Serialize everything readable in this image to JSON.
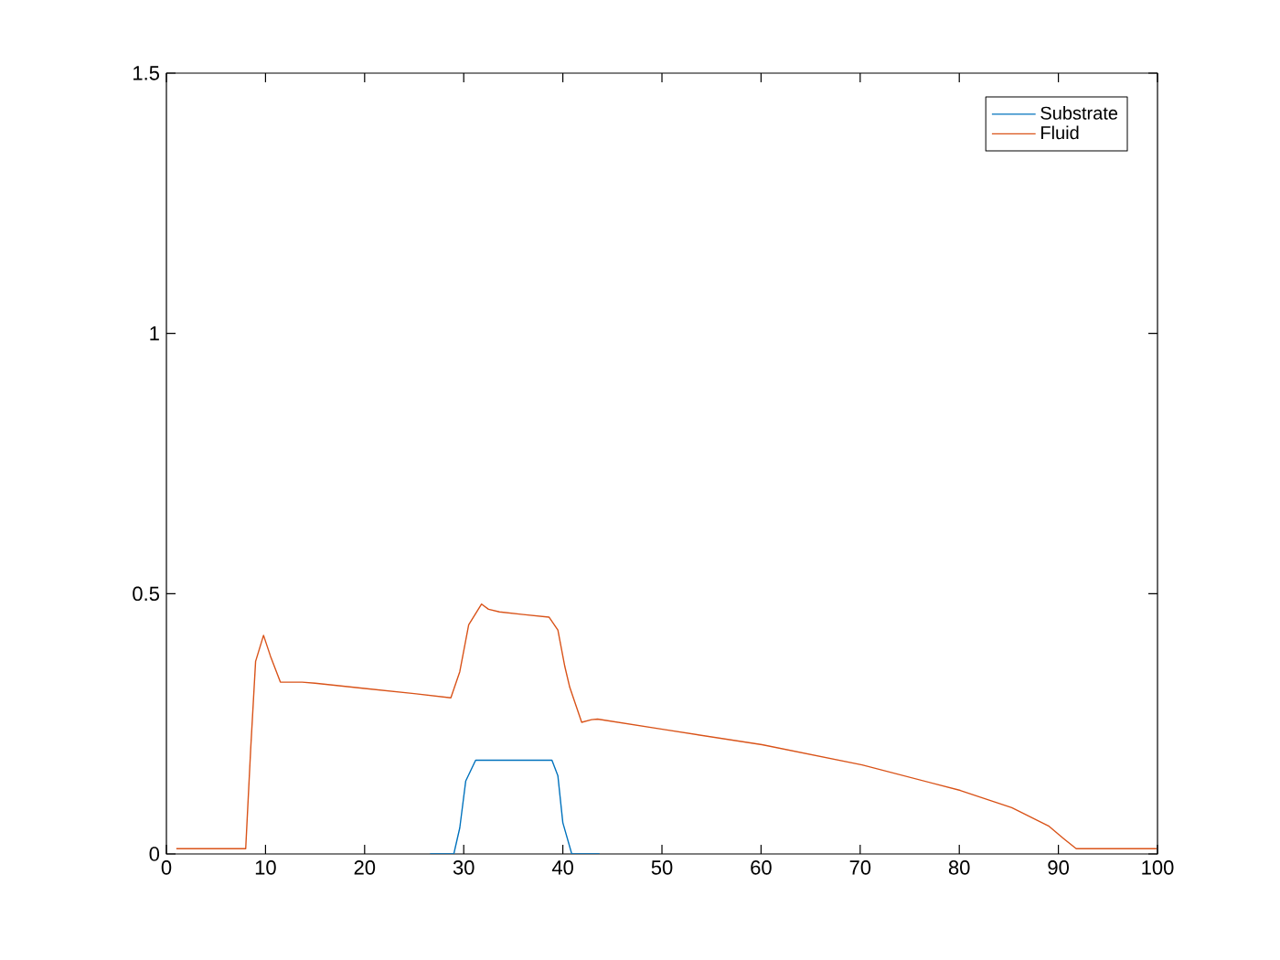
{
  "chart_data": {
    "type": "line",
    "xlim": [
      0,
      100
    ],
    "ylim": [
      0,
      1.5
    ],
    "xticks": [
      0,
      10,
      20,
      30,
      40,
      50,
      60,
      70,
      80,
      90,
      100
    ],
    "yticks": [
      0,
      0.5,
      1,
      1.5
    ],
    "legend": "top right",
    "grid": false,
    "series": [
      {
        "name": "Substrate",
        "color": "#0072bd",
        "x": [
          26.6,
          29.0,
          29.6,
          30.2,
          31.2,
          35,
          38.9,
          39.5,
          40.0,
          40.9,
          43.7
        ],
        "values": [
          0,
          0,
          0.05,
          0.14,
          0.18,
          0.18,
          0.18,
          0.15,
          0.06,
          0,
          0
        ]
      },
      {
        "name": "Fluid",
        "color": "#d95319",
        "x": [
          1.0,
          8.0,
          8.5,
          9.0,
          9.8,
          10.5,
          11.5,
          13.7,
          15,
          20,
          25,
          28.7,
          29.6,
          30.5,
          31.8,
          32.5,
          33.6,
          36,
          38.6,
          39.5,
          40.2,
          40.7,
          41.9,
          42.9,
          43.5,
          50.2,
          60.1,
          70.2,
          80.1,
          85.3,
          89.0,
          90.5,
          91.8,
          99.9
        ],
        "values": [
          0.01,
          0.01,
          0.2,
          0.37,
          0.42,
          0.38,
          0.33,
          0.33,
          0.328,
          0.318,
          0.308,
          0.3,
          0.35,
          0.44,
          0.48,
          0.47,
          0.465,
          0.46,
          0.455,
          0.43,
          0.36,
          0.32,
          0.253,
          0.258,
          0.259,
          0.239,
          0.21,
          0.171,
          0.122,
          0.089,
          0.054,
          0.03,
          0.01,
          0.01
        ]
      }
    ]
  }
}
